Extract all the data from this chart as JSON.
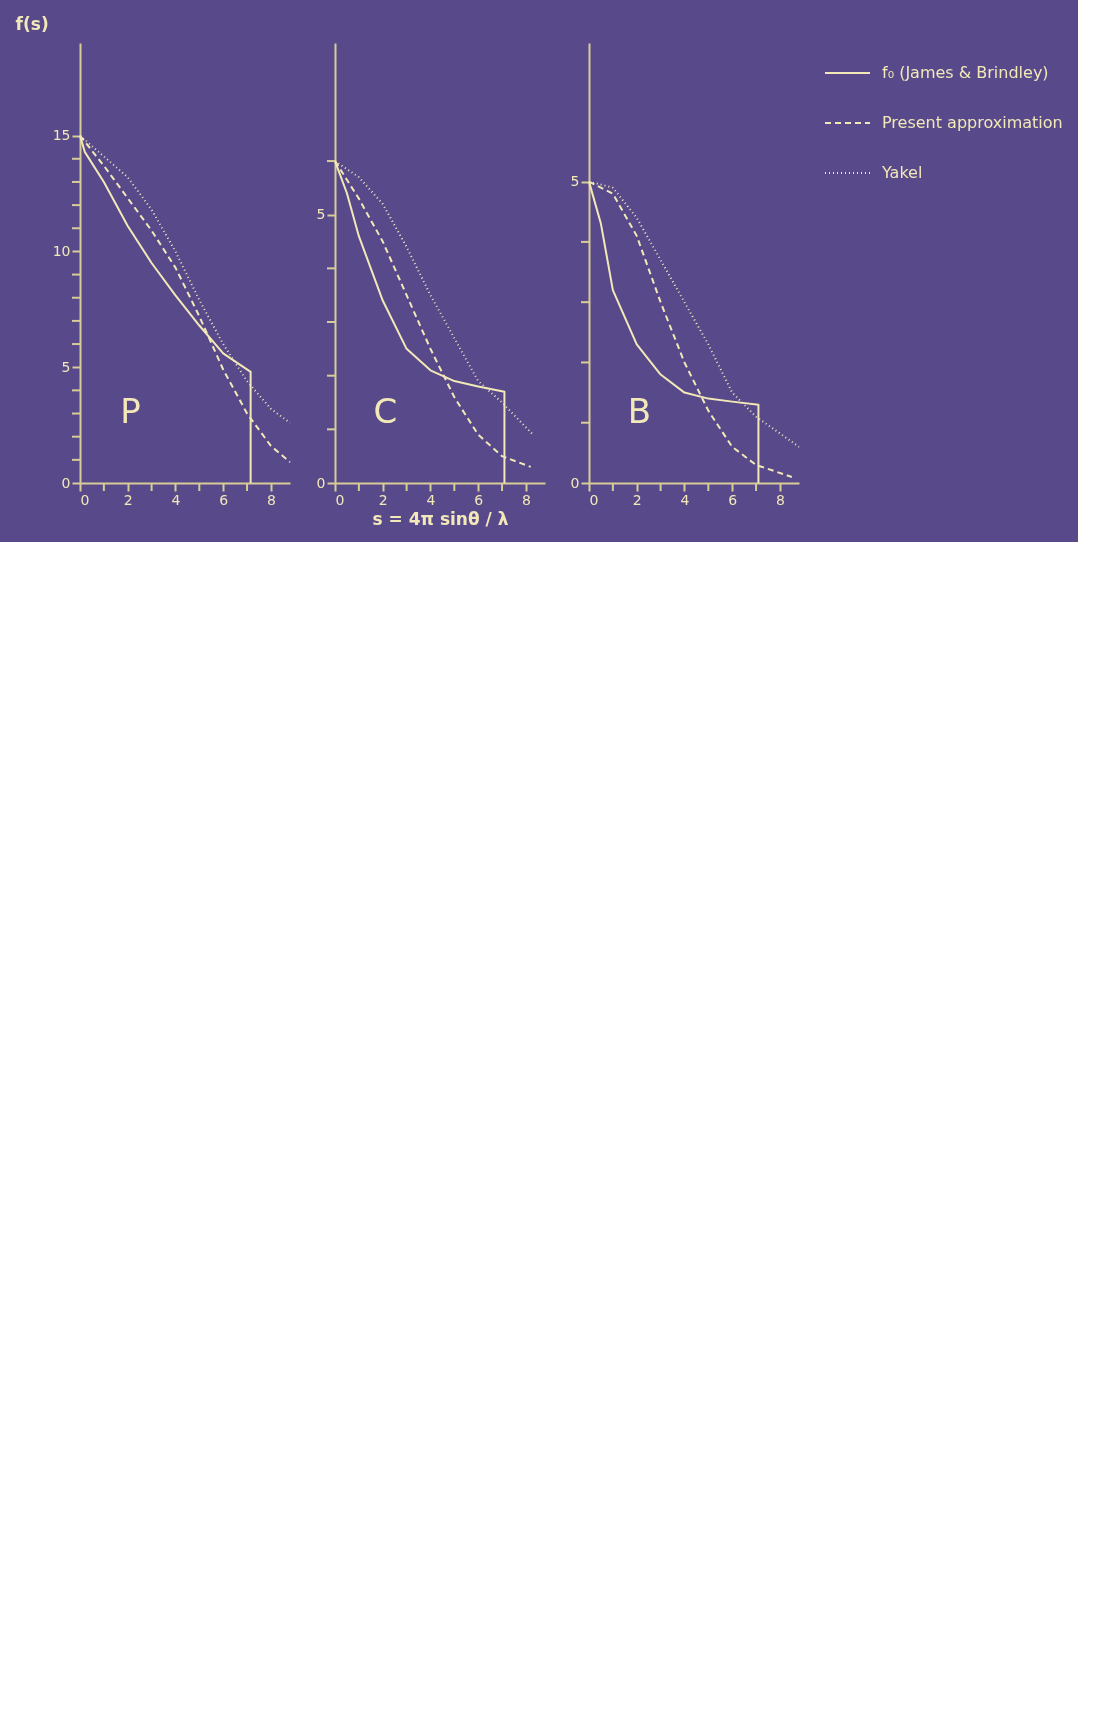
{
  "chart_data": [
    {
      "type": "line",
      "ylabel": "f(s)",
      "xlim": [
        0,
        8.8
      ],
      "ylim": [
        0,
        19
      ],
      "xticks": [
        0,
        {
          "value": 1,
          "label": null
        },
        2,
        {
          "value": 3,
          "label": null
        },
        4,
        {
          "value": 5,
          "label": null
        },
        6,
        {
          "value": 7,
          "label": null
        },
        8
      ],
      "yticks": [
        0,
        {
          "value": 1,
          "label": null
        },
        {
          "value": 2,
          "label": null
        },
        {
          "value": 3,
          "label": null
        },
        {
          "value": 4,
          "label": null
        },
        5,
        {
          "value": 6,
          "label": null
        },
        {
          "value": 7,
          "label": null
        },
        {
          "value": 8,
          "label": null
        },
        {
          "value": 9,
          "label": null
        },
        10,
        {
          "value": 11,
          "label": null
        },
        {
          "value": 12,
          "label": null
        },
        {
          "value": 13,
          "label": null
        },
        {
          "value": 14,
          "label": null
        },
        15
      ],
      "grid": false,
      "legend": false,
      "marker": "none",
      "annotations": [
        "P"
      ],
      "series": [
        {
          "color": "#f2e8b8",
          "line_style": "solid",
          "x": [
            0,
            0.2,
            1,
            2,
            3,
            4,
            5,
            6,
            7.15,
            7.15
          ],
          "values": [
            15,
            14.3,
            13.0,
            11.1,
            9.5,
            8.1,
            6.8,
            5.6,
            4.8,
            0
          ]
        },
        {
          "color": "#f2e8b8",
          "line_style": "dashed",
          "x": [
            0,
            1,
            2,
            3,
            4,
            5,
            6,
            7,
            8,
            8.8
          ],
          "values": [
            15,
            13.7,
            12.3,
            10.9,
            9.3,
            7.2,
            4.9,
            3.0,
            1.6,
            0.9
          ]
        },
        {
          "color": "#f2e8b8",
          "line_style": "dotted",
          "x": [
            0,
            1,
            2,
            3,
            4,
            5,
            6,
            7,
            8,
            8.8
          ],
          "values": [
            15,
            14.1,
            13.2,
            11.8,
            10.0,
            7.9,
            6.0,
            4.4,
            3.2,
            2.6
          ]
        }
      ]
    },
    {
      "type": "line",
      "xlabel": "s = 4π sinθ / λ",
      "xlim": [
        0,
        8.8
      ],
      "ylim": [
        0,
        8.2
      ],
      "xticks": [
        0,
        {
          "value": 1,
          "label": null
        },
        2,
        {
          "value": 3,
          "label": null
        },
        4,
        {
          "value": 5,
          "label": null
        },
        6,
        {
          "value": 7,
          "label": null
        },
        8
      ],
      "yticks": [
        0,
        {
          "value": 1,
          "label": null
        },
        {
          "value": 2,
          "label": null
        },
        {
          "value": 3,
          "label": null
        },
        {
          "value": 4,
          "label": null
        },
        5,
        {
          "value": 6,
          "label": null
        }
      ],
      "grid": false,
      "legend": false,
      "marker": "none",
      "annotations": [
        "C"
      ],
      "series": [
        {
          "color": "#f2e8b8",
          "line_style": "solid",
          "x": [
            0,
            0.5,
            1,
            2,
            3,
            4,
            5,
            6,
            7.1,
            7.1
          ],
          "values": [
            6,
            5.4,
            4.6,
            3.4,
            2.5,
            2.1,
            1.9,
            1.8,
            1.7,
            0
          ]
        },
        {
          "color": "#f2e8b8",
          "line_style": "dashed",
          "x": [
            0,
            1,
            2,
            3,
            4,
            5,
            6,
            7,
            8.2
          ],
          "values": [
            6,
            5.3,
            4.5,
            3.5,
            2.5,
            1.6,
            0.9,
            0.5,
            0.3
          ]
        },
        {
          "color": "#f2e8b8",
          "line_style": "dotted",
          "x": [
            0,
            1,
            2,
            3,
            4,
            5,
            6,
            7,
            8.3
          ],
          "values": [
            6,
            5.7,
            5.2,
            4.4,
            3.5,
            2.7,
            1.9,
            1.5,
            0.9
          ]
        }
      ]
    },
    {
      "type": "line",
      "xlim": [
        0,
        8.8
      ],
      "ylim": [
        0,
        7.3
      ],
      "xticks": [
        0,
        {
          "value": 1,
          "label": null
        },
        2,
        {
          "value": 3,
          "label": null
        },
        4,
        {
          "value": 5,
          "label": null
        },
        6,
        {
          "value": 7,
          "label": null
        },
        8
      ],
      "yticks": [
        0,
        {
          "value": 1,
          "label": null
        },
        {
          "value": 2,
          "label": null
        },
        {
          "value": 3,
          "label": null
        },
        {
          "value": 4,
          "label": null
        },
        5
      ],
      "grid": false,
      "legend": "right",
      "marker": "none",
      "annotations": [
        "B"
      ],
      "series": [
        {
          "name": "f₀ (James & Brindley)",
          "color": "#f2e8b8",
          "line_style": "solid",
          "x": [
            0,
            0.5,
            1,
            2,
            3,
            4,
            5,
            6,
            7.1,
            7.1
          ],
          "values": [
            5,
            4.3,
            3.2,
            2.3,
            1.8,
            1.5,
            1.4,
            1.35,
            1.3,
            0
          ]
        },
        {
          "name": "Present approximation",
          "color": "#f2e8b8",
          "line_style": "dashed",
          "x": [
            0,
            1,
            2,
            3,
            4,
            5,
            6,
            7,
            8.5
          ],
          "values": [
            5,
            4.8,
            4.1,
            3.0,
            2.0,
            1.2,
            0.6,
            0.3,
            0.1
          ]
        },
        {
          "name": "Yakel",
          "color": "#f2e8b8",
          "line_style": "dotted",
          "x": [
            0,
            1,
            2,
            3,
            4,
            5,
            6,
            7,
            8.8
          ],
          "values": [
            5,
            4.9,
            4.4,
            3.7,
            3.0,
            2.3,
            1.5,
            1.1,
            0.6
          ]
        }
      ]
    }
  ]
}
